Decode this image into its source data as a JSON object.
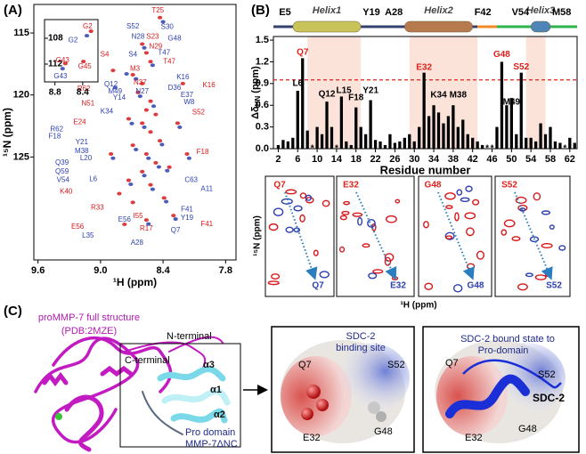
{
  "chart_data": [
    {
      "type": "scatter",
      "title": "(A)",
      "xlabel": "¹H (ppm)",
      "ylabel": "¹⁵N (ppm)",
      "xlim": [
        9.64,
        7.7
      ],
      "ylim": [
        133.3,
        112.7
      ],
      "xticks": [
        9.6,
        {
          "value": 9,
          "label": "9.0"
        },
        8.4,
        7.8
      ],
      "yticks": [
        115,
        120,
        125
      ],
      "series": [
        {
          "color": "#d7191c",
          "x": [
            8.43,
            8.6,
            8.56,
            8.52,
            8.69,
            8.6,
            8.64,
            8.52,
            8.56,
            8.47,
            8.73,
            8.6,
            8.52,
            8.43,
            8.69,
            8.56,
            8.47,
            8.34,
            8.6,
            8.73,
            8.52,
            8.39,
            8.69,
            8.3,
            8.56,
            8.77,
            8.88,
            8.21,
            8.26,
            8.17,
            8.9,
            8.82
          ],
          "values": [
            113.76,
            115.89,
            116.6,
            117.31,
            118.37,
            119.08,
            119.79,
            120.5,
            121.21,
            121.57,
            121.92,
            122.27,
            122.98,
            123.69,
            124.05,
            124.76,
            125.47,
            125.82,
            126.18,
            126.88,
            127.24,
            128.3,
            128.66,
            129.72,
            130.08,
            130.43,
            118.02,
            119.08,
            122.27,
            124.76,
            124.76,
            127.95
          ]
        },
        {
          "color": "#2b3fb0",
          "x": [
            8.4,
            8.58,
            8.5,
            8.66,
            8.62,
            8.49,
            8.7,
            8.58,
            8.41,
            8.66,
            8.54,
            8.44,
            8.36,
            8.58,
            8.71,
            8.5,
            8.37,
            8.28,
            8.54,
            8.75,
            8.86,
            8.24,
            8.15,
            8.88
          ],
          "values": [
            114.1,
            116.2,
            117.6,
            118.7,
            120.1,
            120.9,
            122.3,
            122.6,
            124.0,
            124.4,
            125.1,
            125.8,
            126.1,
            126.5,
            127.2,
            127.6,
            128.6,
            130.0,
            130.4,
            118.3,
            119.4,
            122.6,
            125.1,
            125.1
          ]
        }
      ],
      "annotations": [
        {
          "text": "T25",
          "x": 8.45,
          "y": 113.2,
          "color": "#d7191c"
        },
        {
          "text": "S52",
          "x": 8.69,
          "y": 114.47,
          "color": "#2b3fb0"
        },
        {
          "text": "S30",
          "x": 8.36,
          "y": 114.54,
          "color": "#2b3fb0"
        },
        {
          "text": "N28",
          "x": 8.64,
          "y": 115.32,
          "color": "#2b3fb0"
        },
        {
          "text": "S23",
          "x": 8.5,
          "y": 115.32,
          "color": "#d7191c"
        },
        {
          "text": "G48",
          "x": 8.29,
          "y": 115.47,
          "color": "#2b3fb0"
        },
        {
          "text": "S4",
          "x": 8.96,
          "y": 116.74,
          "color": "#d7191c"
        },
        {
          "text": "N29",
          "x": 8.47,
          "y": 116.1,
          "color": "#d7191c"
        },
        {
          "text": "S4",
          "x": 8.69,
          "y": 116.74,
          "color": "#2b3fb0"
        },
        {
          "text": "T47",
          "x": 8.39,
          "y": 116.6,
          "color": "#2b3fb0"
        },
        {
          "text": "T47",
          "x": 8.34,
          "y": 117.31,
          "color": "#d7191c"
        },
        {
          "text": "M3",
          "x": 8.67,
          "y": 117.88,
          "color": "#d7191c"
        },
        {
          "text": "N37",
          "x": 8.62,
          "y": 119.01,
          "color": "#d7191c"
        },
        {
          "text": "Q12",
          "x": 8.9,
          "y": 119.15,
          "color": "#2b3fb0"
        },
        {
          "text": "K16",
          "x": 8.21,
          "y": 118.59,
          "color": "#2b3fb0"
        },
        {
          "text": "M49",
          "x": 8.86,
          "y": 119.72,
          "color": "#2b3fb0"
        },
        {
          "text": "R62",
          "x": 9.16,
          "y": 119.51,
          "color": "#d7191c"
        },
        {
          "text": "N27",
          "x": 8.6,
          "y": 119.72,
          "color": "#2b3fb0"
        },
        {
          "text": "Y14",
          "x": 8.82,
          "y": 120.22,
          "color": "#2b3fb0"
        },
        {
          "text": "D36",
          "x": 8.29,
          "y": 119.44,
          "color": "#2b3fb0"
        },
        {
          "text": "K16",
          "x": 7.96,
          "y": 119.22,
          "color": "#d7191c"
        },
        {
          "text": "E37",
          "x": 8.17,
          "y": 120.0,
          "color": "#2b3fb0"
        },
        {
          "text": "W8",
          "x": 8.15,
          "y": 120.57,
          "color": "#2b3fb0"
        },
        {
          "text": "N51",
          "x": 9.12,
          "y": 120.71,
          "color": "#d7191c"
        },
        {
          "text": "S52",
          "x": 8.06,
          "y": 121.42,
          "color": "#d7191c"
        },
        {
          "text": "E24",
          "x": 9.2,
          "y": 122.2,
          "color": "#d7191c"
        },
        {
          "text": "K34",
          "x": 8.94,
          "y": 121.35,
          "color": "#2b3fb0"
        },
        {
          "text": "R62",
          "x": 9.42,
          "y": 122.77,
          "color": "#2b3fb0"
        },
        {
          "text": "F18",
          "x": 9.44,
          "y": 123.34,
          "color": "#2b3fb0"
        },
        {
          "text": "Y21",
          "x": 9.18,
          "y": 123.83,
          "color": "#2b3fb0"
        },
        {
          "text": "M38",
          "x": 9.18,
          "y": 124.54,
          "color": "#2b3fb0"
        },
        {
          "text": "L20",
          "x": 9.14,
          "y": 125.11,
          "color": "#2b3fb0"
        },
        {
          "text": "Q39",
          "x": 9.37,
          "y": 125.47,
          "color": "#2b3fb0"
        },
        {
          "text": "Q59",
          "x": 9.37,
          "y": 126.18,
          "color": "#2b3fb0"
        },
        {
          "text": "V54",
          "x": 9.36,
          "y": 126.88,
          "color": "#2b3fb0"
        },
        {
          "text": "L6",
          "x": 9.07,
          "y": 126.81,
          "color": "#2b3fb0"
        },
        {
          "text": "K40",
          "x": 9.33,
          "y": 127.81,
          "color": "#d7191c"
        },
        {
          "text": "E56",
          "x": 9.22,
          "y": 130.64,
          "color": "#d7191c"
        },
        {
          "text": "L35",
          "x": 9.12,
          "y": 131.35,
          "color": "#2b3fb0"
        },
        {
          "text": "A28",
          "x": 8.65,
          "y": 131.92,
          "color": "#2b3fb0"
        },
        {
          "text": "R17",
          "x": 8.56,
          "y": 130.79,
          "color": "#d7191c"
        },
        {
          "text": "Y19",
          "x": 8.17,
          "y": 129.93,
          "color": "#2b3fb0"
        },
        {
          "text": "F41",
          "x": 7.98,
          "y": 130.43,
          "color": "#d7191c"
        },
        {
          "text": "C63",
          "x": 8.13,
          "y": 126.88,
          "color": "#2b3fb0"
        },
        {
          "text": "A11",
          "x": 7.98,
          "y": 127.59,
          "color": "#2b3fb0"
        },
        {
          "text": "F18",
          "x": 8.02,
          "y": 124.61,
          "color": "#d7191c"
        },
        {
          "text": "F41",
          "x": 8.17,
          "y": 129.22,
          "color": "#2b3fb0"
        },
        {
          "text": "Q7",
          "x": 8.28,
          "y": 130.93,
          "color": "#2b3fb0"
        },
        {
          "text": "I55",
          "x": 8.64,
          "y": 129.79,
          "color": "#d7191c"
        },
        {
          "text": "R33",
          "x": 9.03,
          "y": 129.08,
          "color": "#d7191c"
        },
        {
          "text": "E56",
          "x": 8.77,
          "y": 130.08,
          "color": "#2b3fb0"
        }
      ]
    },
    {
      "type": "scatter",
      "xlim": [
        8.95,
        8.18
      ],
      "ylim": [
        114.76,
        105.1
      ],
      "xticks": [
        8.8,
        8.4
      ],
      "yticks": [
        108,
        112
      ],
      "series": [
        {
          "color": "#d7191c",
          "x": [
            8.28,
            8.65,
            8.39
          ],
          "values": [
            106.9,
            111.9,
            111.6
          ]
        },
        {
          "color": "#2b3fb0",
          "x": [
            8.34,
            8.69
          ],
          "values": [
            107.6,
            112.7
          ]
        }
      ],
      "annotations": [
        {
          "text": "G2",
          "x": 8.33,
          "y": 106.2,
          "color": "#d7191c"
        },
        {
          "text": "G2",
          "x": 8.54,
          "y": 108.3,
          "color": "#2b3fb0"
        },
        {
          "text": "G43",
          "x": 8.69,
          "y": 111.4,
          "color": "#d7191c"
        },
        {
          "text": "G45",
          "x": 8.37,
          "y": 112.4,
          "color": "#d7191c"
        },
        {
          "text": "G43",
          "x": 8.72,
          "y": 113.9,
          "color": "#2b3fb0"
        }
      ]
    },
    {
      "type": "bar",
      "title": "(B)",
      "xlabel": "Residue number",
      "ylabel": "Δδ",
      "ylabel_sub": "HN",
      "ylabel_unit": "(ppm)",
      "color": "#000000",
      "x": [
        2,
        3,
        4,
        5,
        6,
        7,
        8,
        9,
        10,
        11,
        12,
        13,
        14,
        15,
        16,
        17,
        18,
        19,
        20,
        21,
        22,
        23,
        24,
        25,
        26,
        27,
        28,
        29,
        30,
        31,
        32,
        33,
        34,
        35,
        36,
        37,
        38,
        39,
        40,
        41,
        42,
        43,
        44,
        45,
        46,
        47,
        48,
        49,
        50,
        51,
        52,
        53,
        54,
        55,
        56,
        57,
        58,
        59,
        60,
        61,
        62,
        63
      ],
      "values": [
        0.05,
        0.12,
        0.1,
        0.15,
        0.8,
        1.25,
        0.25,
        null,
        0.3,
        0.2,
        0.65,
        0.3,
        null,
        0.72,
        0.1,
        0.05,
        0.57,
        0.3,
        0.2,
        0.67,
        0.12,
        0.1,
        0.05,
        0.2,
        0.08,
        0.1,
        0.15,
        0.2,
        0.1,
        0.3,
        1.05,
        0.45,
        0.6,
        0.5,
        0.35,
        0.45,
        0.6,
        0.3,
        0.4,
        0.2,
        0.15,
        0.1,
        0.05,
        null,
        null,
        0.3,
        1.2,
        0.6,
        0.7,
        0.2,
        1.05,
        0.15,
        0.15,
        0.1,
        0.35,
        0.2,
        0.3,
        0.1,
        0.08,
        null,
        0.15,
        0.08
      ],
      "xlim": [
        1,
        63.5
      ],
      "ylim": [
        0,
        1.55
      ],
      "xticks": [
        2,
        6,
        10,
        14,
        18,
        22,
        26,
        30,
        34,
        38,
        42,
        46,
        50,
        54,
        58,
        62
      ],
      "yticks": [
        {
          "value": 0,
          "label": "0.0"
        },
        0.3,
        0.6,
        0.9,
        1.2,
        1.5
      ],
      "threshold": 0.95,
      "threshold_color": "#e0201b",
      "shaded_ranges": [
        [
          8,
          19
        ],
        [
          29,
          43
        ],
        [
          53,
          57
        ]
      ],
      "shade_color": "#fbe3da",
      "backbone": [
        {
          "start": 1,
          "end": 43,
          "color": "#34406e"
        },
        {
          "start": 43,
          "end": 47,
          "color": "#f08a24"
        },
        {
          "start": 47,
          "end": 63.5,
          "color": "#2fb34a"
        }
      ],
      "helices": [
        {
          "name": "Helix1",
          "start_label": "E5",
          "end_label": "Y19",
          "start": 5,
          "end": 19,
          "color": "#c9c45a"
        },
        {
          "name": "Helix2",
          "start_label": "A28",
          "end_label": "F42",
          "start": 28,
          "end": 42,
          "color": "#b77a4e"
        },
        {
          "name": "Helix3",
          "start_label": "V54",
          "end_label": "M58",
          "start": 54,
          "end": 58,
          "color": "#4f86b8"
        }
      ],
      "annotations": [
        {
          "text": "L6",
          "x": 6,
          "y": 0.9,
          "color": "#000000"
        },
        {
          "text": "Q7",
          "x": 7,
          "y": 1.33,
          "color": "#e0201b"
        },
        {
          "text": "Q12",
          "x": 12,
          "y": 0.75,
          "color": "#000000"
        },
        {
          "text": "L15",
          "x": 15.5,
          "y": 0.8,
          "color": "#000000"
        },
        {
          "text": "F18",
          "x": 18,
          "y": 0.7,
          "color": "#000000"
        },
        {
          "text": "Y21",
          "x": 21,
          "y": 0.8,
          "color": "#000000"
        },
        {
          "text": "E32",
          "x": 32,
          "y": 1.12,
          "color": "#e0201b"
        },
        {
          "text": "K34",
          "x": 35,
          "y": 0.74,
          "color": "#000000"
        },
        {
          "text": "M38",
          "x": 39,
          "y": 0.74,
          "color": "#000000"
        },
        {
          "text": "G48",
          "x": 48,
          "y": 1.3,
          "color": "#e0201b"
        },
        {
          "text": "M49",
          "x": 50,
          "y": 0.64,
          "color": "#000000"
        },
        {
          "text": "S52",
          "x": 52,
          "y": 1.13,
          "color": "#e0201b"
        },
        {
          "text": "*",
          "x": 9,
          "y": 0.0,
          "color": "#000000"
        },
        {
          "text": "*",
          "x": 14,
          "y": 0.0,
          "color": "#000000"
        },
        {
          "text": "*",
          "x": 45,
          "y": 0.0,
          "color": "#000000"
        },
        {
          "text": "*",
          "x": 46,
          "y": 0.0,
          "color": "#000000"
        },
        {
          "text": "*",
          "x": 61,
          "y": 0.0,
          "color": "#000000"
        }
      ]
    }
  ],
  "zoom": {
    "ylabel": "¹⁵N (ppm)",
    "xlabel": "¹H (ppm)",
    "boxes": [
      {
        "start": "Q7",
        "end": "Q7"
      },
      {
        "start": "E32",
        "end": "E32"
      },
      {
        "start": "G48",
        "end": "G48"
      },
      {
        "start": "S52",
        "end": "S52"
      }
    ]
  },
  "panel_c": {
    "label": "(C)",
    "title": "proMMP-7 full structure",
    "pdb": "(PDB:2MZE)",
    "n_terminal": "N-terminal",
    "c_terminal": "C-terminal",
    "helix_labels": [
      "α3",
      "α1",
      "α2"
    ],
    "domain": "Pro domain",
    "construct": "MMP-7ΔNC",
    "site_box": {
      "title": [
        "SDC-2",
        "binding site"
      ],
      "residues": [
        "Q7",
        "S52",
        "E32",
        "G48"
      ]
    },
    "bound_box": {
      "title": [
        "SDC-2 bound state to",
        "Pro-domain"
      ],
      "residues": [
        "Q7",
        "S52",
        "E32",
        "G48"
      ],
      "ligand": "SDC-2"
    }
  }
}
